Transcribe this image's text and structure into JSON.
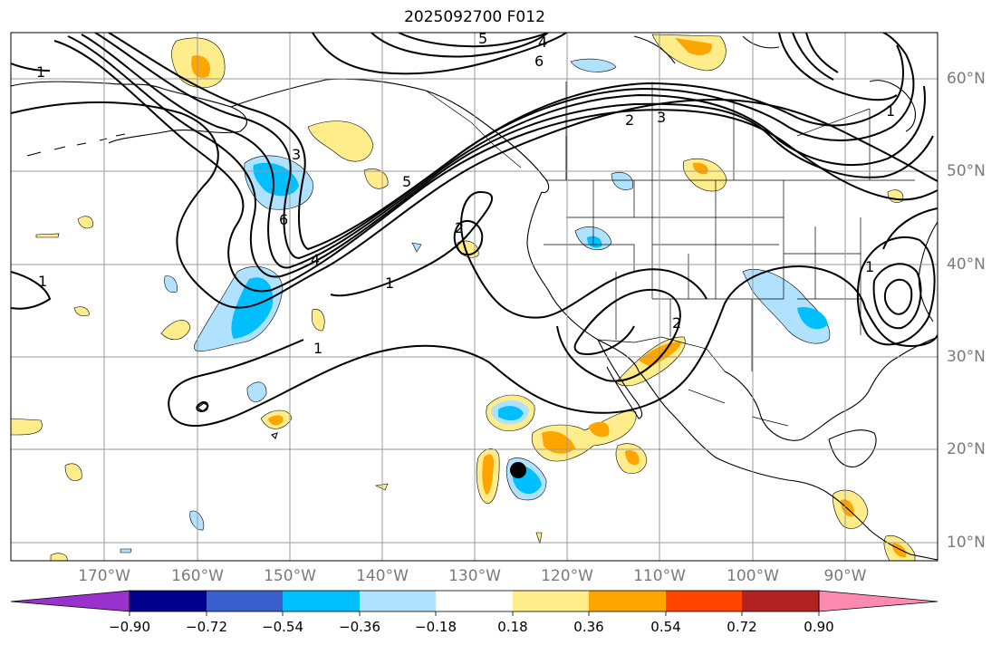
{
  "title": "2025092700 F012",
  "map": {
    "longitude_labels": [
      "170°W",
      "160°W",
      "150°W",
      "140°W",
      "130°W",
      "120°W",
      "110°W",
      "100°W",
      "90°W"
    ],
    "latitude_labels": [
      "60°N",
      "50°N",
      "40°N",
      "30°N",
      "20°N",
      "10°N"
    ],
    "contour_labels": [
      "5",
      "4",
      "6",
      "2",
      "3",
      "1",
      "3",
      "6",
      "5",
      "4",
      "1",
      "2",
      "1",
      "2",
      "1",
      "1",
      "1"
    ],
    "marker": "storm-center"
  },
  "colorbar": {
    "tick_labels": [
      "−0.90",
      "−0.72",
      "−0.54",
      "−0.36",
      "−0.18",
      "0.18",
      "0.36",
      "0.54",
      "0.72",
      "0.90"
    ],
    "colors": [
      "#9932CC",
      "#00008B",
      "#3A5FCD",
      "#00BFFF",
      "#B0E2FF",
      "#FFFFFF",
      "#FFEC8B",
      "#FFA500",
      "#FF4500",
      "#B22222",
      "#FF8AB0"
    ]
  }
}
